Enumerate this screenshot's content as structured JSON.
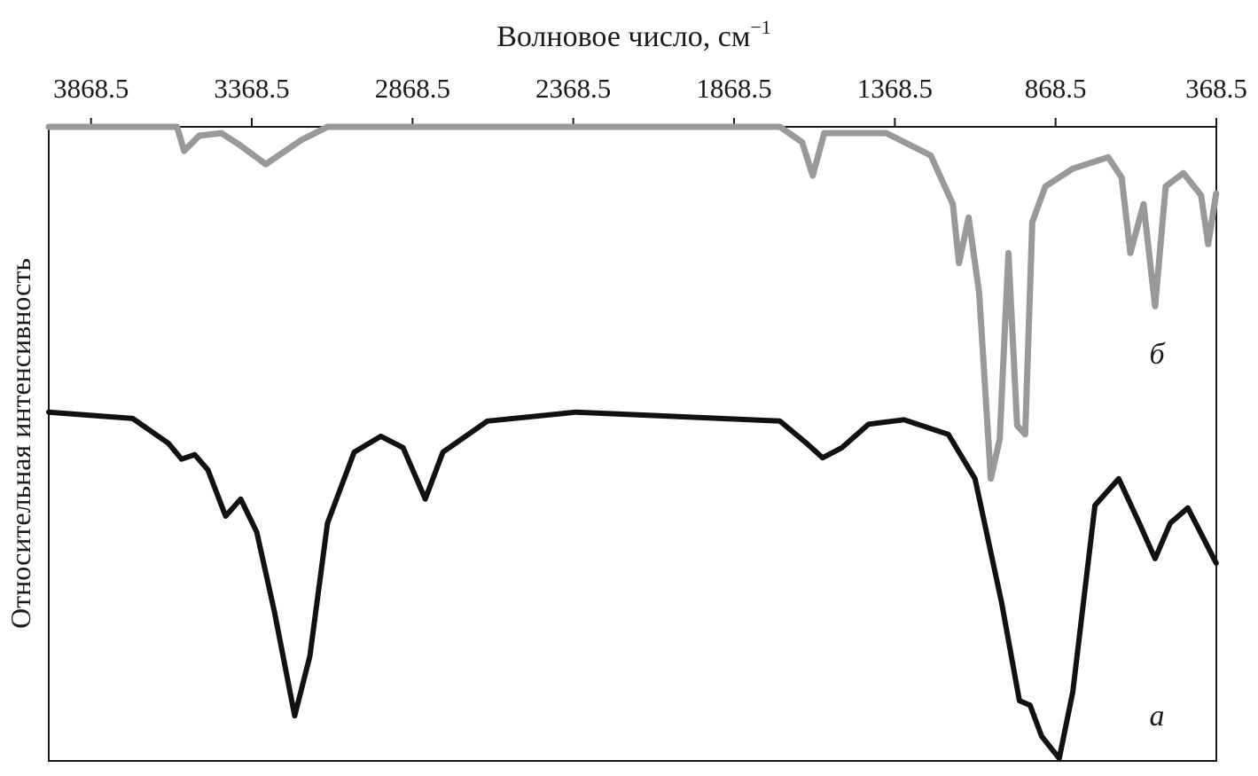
{
  "chart_data": {
    "type": "line",
    "xlabel": "Волновое число, см",
    "xlabel_superscript": "−1",
    "ylabel": "Относительная интенсивность",
    "xlim": [
      4000,
      368.5
    ],
    "xticks": [
      3868.5,
      3368.5,
      2868.5,
      2368.5,
      1868.5,
      1368.5,
      868.5,
      368.5
    ],
    "ylim": [
      0,
      100
    ],
    "series": [
      {
        "name": "а",
        "color": "#111111",
        "x": [
          4000,
          3739,
          3628,
          3587,
          3546,
          3505,
          3450,
          3403,
          3353,
          3298,
          3235,
          3188,
          3133,
          3050,
          2967,
          2898,
          2829,
          2774,
          2636,
          2360,
          1726,
          1643,
          1593,
          1533,
          1450,
          1340,
          1202,
          1119,
          1036,
          981,
          948,
          912,
          857,
          815,
          746,
          672,
          608,
          559,
          512,
          457,
          369
        ],
        "values": [
          55.0,
          54.0,
          50.1,
          47.6,
          48.3,
          45.9,
          38.6,
          41.3,
          36.1,
          23.5,
          7.1,
          16.5,
          37.5,
          48.7,
          51.2,
          49.4,
          41.3,
          48.7,
          53.6,
          55.0,
          53.6,
          50.1,
          47.8,
          49.4,
          53.1,
          53.8,
          51.5,
          44.5,
          24.9,
          9.5,
          8.8,
          3.9,
          0.4,
          10.9,
          40.3,
          44.5,
          37.5,
          31.9,
          37.5,
          39.9,
          31.2
        ]
      },
      {
        "name": "б",
        "color": "#999999",
        "x": [
          4000,
          3601,
          3579,
          3532,
          3463,
          3408,
          3325,
          3215,
          3133,
          1726,
          1657,
          1624,
          1588,
          1395,
          1257,
          1188,
          1169,
          1139,
          1106,
          1070,
          1042,
          1015,
          988,
          963,
          941,
          900,
          815,
          705,
          663,
          636,
          595,
          559,
          526,
          471,
          416,
          394,
          369
        ],
        "values": [
          100,
          100,
          96.2,
          98.6,
          99.0,
          97.2,
          94.1,
          97.9,
          100,
          100,
          97.6,
          92.3,
          99.0,
          99.0,
          95.5,
          87.8,
          78.5,
          85.7,
          73.8,
          44.5,
          50.8,
          80.1,
          52.9,
          51.5,
          85.0,
          90.6,
          93.4,
          95.2,
          92.0,
          80.1,
          87.8,
          71.7,
          90.6,
          92.7,
          89.2,
          81.5,
          89.5
        ]
      }
    ]
  }
}
